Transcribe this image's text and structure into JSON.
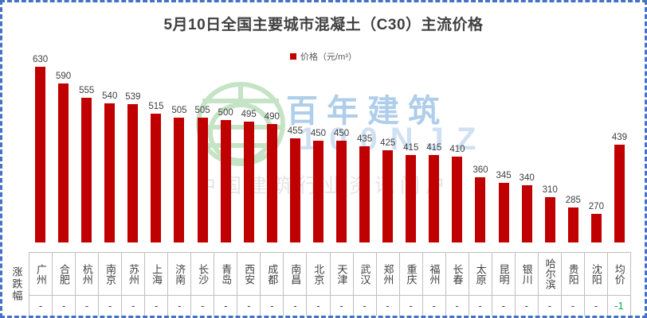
{
  "title": "5月10日全国主要城市混凝土（C30）主流价格",
  "legend": {
    "label": "价格（元/m³）",
    "marker_color": "#C00000"
  },
  "chart_data": {
    "type": "bar",
    "title": "5月10日全国主要城市混凝土（C30）主流价格",
    "series_name": "价格",
    "unit": "元/m³",
    "categories": [
      "广州",
      "合肥",
      "杭州",
      "南京",
      "苏州",
      "上海",
      "济南",
      "长沙",
      "青岛",
      "西安",
      "成都",
      "南昌",
      "北京",
      "天津",
      "武汉",
      "郑州",
      "重庆",
      "福州",
      "长春",
      "太原",
      "昆明",
      "银川",
      "哈尔滨",
      "贵阳",
      "沈阳",
      "均价"
    ],
    "values": [
      630,
      590,
      555,
      540,
      539,
      515,
      505,
      505,
      500,
      495,
      490,
      455,
      450,
      450,
      435,
      425,
      415,
      415,
      410,
      360,
      345,
      340,
      310,
      285,
      270,
      439
    ],
    "bar_color": "#C00000",
    "ylim": [
      200,
      650
    ],
    "grid": false,
    "data_labels": true,
    "legend_position": "top-center"
  },
  "table": {
    "row_header": "涨跌幅",
    "changes": [
      "-",
      "-",
      "-",
      "-",
      "-",
      "-",
      "-",
      "-",
      "-",
      "-",
      "-",
      "-",
      "-",
      "-",
      "-",
      "-",
      "-",
      "-",
      "-",
      "-",
      "-",
      "-",
      "-",
      "-",
      "-",
      "-1"
    ],
    "change_default_color": "#404040",
    "change_highlight_color": "#00B050"
  },
  "watermark": {
    "brand": "百年建筑",
    "brand_sub": "100NJZ",
    "tagline": "中国建筑行业资讯门户"
  },
  "colors": {
    "frame_border": "#4472C4",
    "title_text": "#404040",
    "label_text": "#404040",
    "table_border": "#BFBFBF",
    "watermark_green": "#B2DCB2",
    "watermark_blue": "#A7C9E8"
  }
}
